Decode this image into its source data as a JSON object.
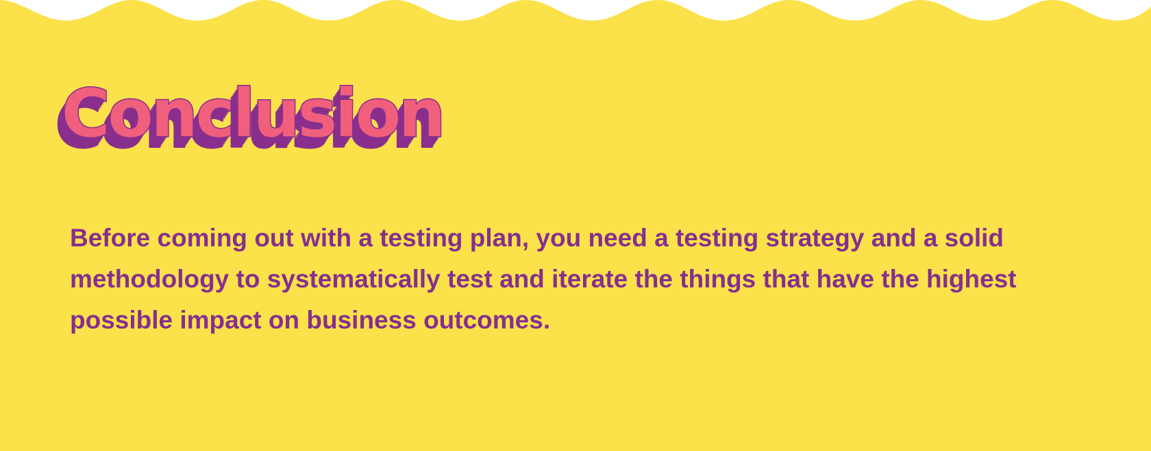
{
  "slide": {
    "title": "Conclusion",
    "body": "Before coming out with a testing plan, you need a testing strategy and a solid methodology to systematically test and iterate the things that have the highest possible impact on business outcomes."
  },
  "colors": {
    "background": "#fce24a",
    "title_fill": "#f0607c",
    "title_shadow": "#8a2e8e",
    "body_text": "#862f8e"
  }
}
